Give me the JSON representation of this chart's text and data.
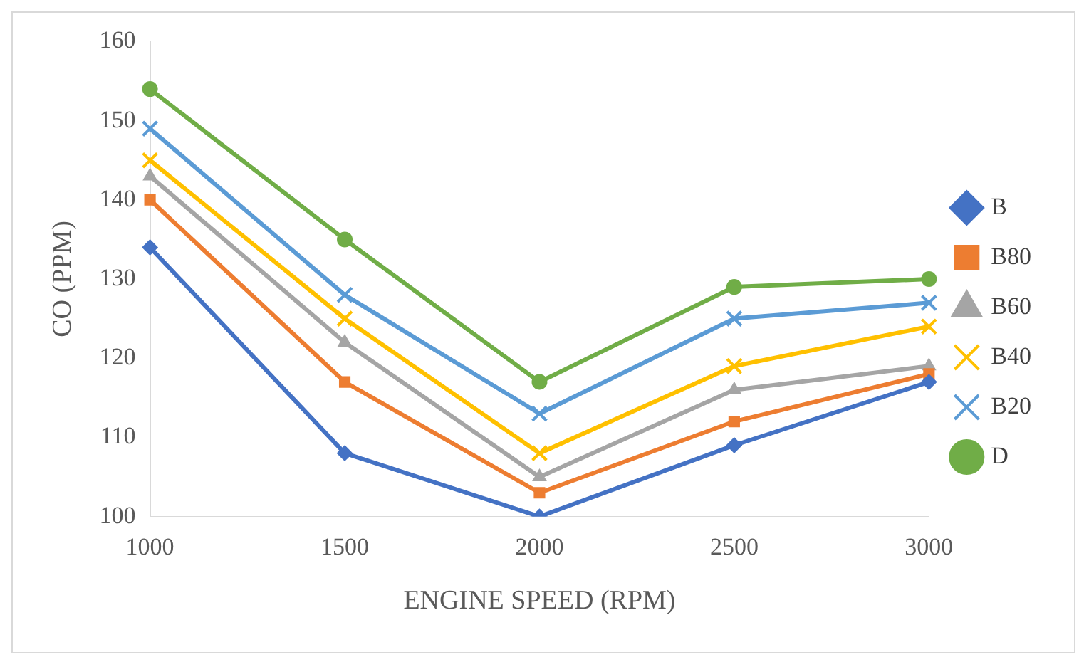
{
  "chart_data": {
    "type": "line",
    "xlabel": "ENGINE SPEED (RPM)",
    "ylabel": "CO (PPM)",
    "categories": [
      "1000",
      "1500",
      "2000",
      "2500",
      "3000"
    ],
    "ylim": [
      100,
      160
    ],
    "yticks": [
      100,
      110,
      120,
      130,
      140,
      150,
      160
    ],
    "grid": false,
    "legend": "right",
    "line_style": "solid",
    "series": [
      {
        "name": "B",
        "color": "#4472c4",
        "marker": "diamond",
        "values": [
          134,
          108,
          100,
          109,
          117
        ]
      },
      {
        "name": "B80",
        "color": "#ed7d31",
        "marker": "square",
        "values": [
          140,
          117,
          103,
          112,
          118
        ]
      },
      {
        "name": "B60",
        "color": "#a5a5a5",
        "marker": "triangle",
        "values": [
          143,
          122,
          105,
          116,
          119
        ]
      },
      {
        "name": "B40",
        "color": "#ffc000",
        "marker": "cross",
        "values": [
          145,
          125,
          108,
          119,
          124
        ]
      },
      {
        "name": "B20",
        "color": "#5b9bd5",
        "marker": "cross",
        "values": [
          149,
          128,
          113,
          125,
          127
        ]
      },
      {
        "name": "D",
        "color": "#70ad47",
        "marker": "circle",
        "values": [
          154,
          135,
          117,
          129,
          130
        ]
      }
    ]
  }
}
